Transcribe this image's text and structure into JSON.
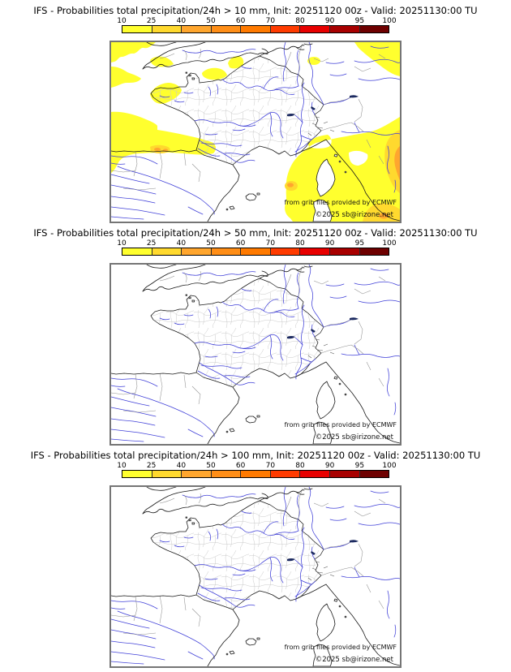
{
  "page": {
    "background": "#FFFFFF"
  },
  "colorbar": {
    "ticks": [
      "10",
      "25",
      "40",
      "50",
      "60",
      "70",
      "80",
      "90",
      "95",
      "100"
    ],
    "colors": [
      "#FFFF2E",
      "#FFD92E",
      "#FFA62E",
      "#FF8E17",
      "#FF7A00",
      "#FF3B00",
      "#E80000",
      "#A80000",
      "#6E0000"
    ]
  },
  "panels": [
    {
      "title": "IFS - Probabilities total precipitation/24h > 10 mm, Init: 20251120 00z - Valid: 20251130:00 TU",
      "threshold_mm": 10,
      "has_probability_overlay": true
    },
    {
      "title": "IFS - Probabilities total precipitation/24h > 50 mm, Init: 20251120 00z - Valid: 20251130:00 TU",
      "threshold_mm": 50,
      "has_probability_overlay": false
    },
    {
      "title": "IFS - Probabilities total precipitation/24h > 100 mm, Init: 20251120 00z - Valid: 20251130:00 TU",
      "threshold_mm": 100,
      "has_probability_overlay": false
    }
  ],
  "map": {
    "attribution_line1": "from grib files provided by ECMWF",
    "attribution_line2": "©2025 sb@irizone.net",
    "colors": {
      "sea": "#FFFFFF",
      "coast": "#1A1A1A",
      "country_border": "#8F8F8F",
      "department_border": "#C9C9C9",
      "river": "#4040D8",
      "overlay_10pct": "#FFFF2E",
      "overlay_25pct": "#FFD92E",
      "overlay_40pct": "#FFA62E"
    }
  },
  "legend_meaning": {
    "unit": "%",
    "thresholds": [
      10,
      25,
      40,
      50,
      60,
      70,
      80,
      90,
      95,
      100
    ]
  }
}
